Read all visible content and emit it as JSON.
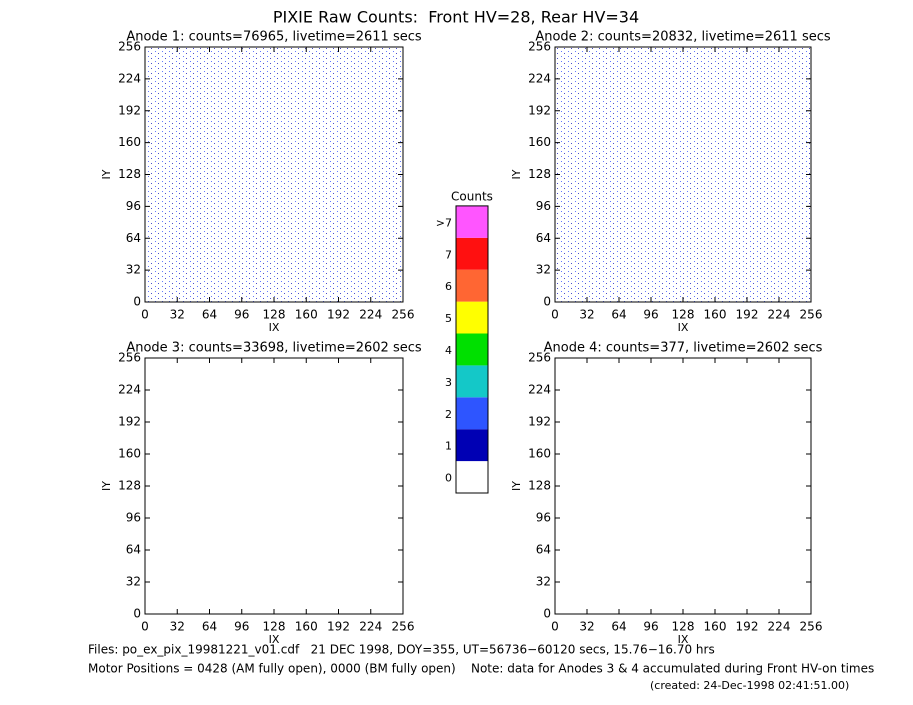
{
  "title": "PIXIE Raw Counts:  Front HV=28, Rear HV=34",
  "chart_data": [
    {
      "type": "heatmap",
      "title": "Anode 1: counts=76965, livetime=2611 secs",
      "xlabel": "IX",
      "ylabel": "IY",
      "xlim": [
        0,
        256
      ],
      "ylim": [
        0,
        256
      ],
      "xticks": [
        0,
        32,
        64,
        96,
        128,
        160,
        192,
        224,
        256
      ],
      "yticks": [
        0,
        32,
        64,
        96,
        128,
        160,
        192,
        224,
        256
      ]
    },
    {
      "type": "heatmap",
      "title": "Anode 2: counts=20832, livetime=2611 secs",
      "xlabel": "IX",
      "ylabel": "IY",
      "xlim": [
        0,
        256
      ],
      "ylim": [
        0,
        256
      ],
      "xticks": [
        0,
        32,
        64,
        96,
        128,
        160,
        192,
        224,
        256
      ],
      "yticks": [
        0,
        32,
        64,
        96,
        128,
        160,
        192,
        224,
        256
      ]
    },
    {
      "type": "heatmap",
      "title": "Anode 3: counts=33698, livetime=2602 secs",
      "xlabel": "IX",
      "ylabel": "IY",
      "xlim": [
        0,
        256
      ],
      "ylim": [
        0,
        256
      ],
      "xticks": [
        0,
        32,
        64,
        96,
        128,
        160,
        192,
        224,
        256
      ],
      "yticks": [
        0,
        32,
        64,
        96,
        128,
        160,
        192,
        224,
        256
      ]
    },
    {
      "type": "heatmap",
      "title": "Anode 4: counts=377, livetime=2602 secs",
      "xlabel": "IX",
      "ylabel": "IY",
      "xlim": [
        0,
        256
      ],
      "ylim": [
        0,
        256
      ],
      "xticks": [
        0,
        32,
        64,
        96,
        128,
        160,
        192,
        224,
        256
      ],
      "yticks": [
        0,
        32,
        64,
        96,
        128,
        160,
        192,
        224,
        256
      ]
    },
    {
      "type": "colorbar",
      "title": "Counts",
      "categories": [
        "0",
        "1",
        "2",
        "3",
        "4",
        "5",
        "6",
        "7",
        ">7"
      ],
      "colors": [
        "#ffffff",
        "#0000b4",
        "#2e55ff",
        "#14c8c8",
        "#00e000",
        "#ffff00",
        "#ff6633",
        "#ff1010",
        "#ff55ff"
      ]
    }
  ],
  "footer": {
    "lines": [
      "Files: po_ex_pix_19981221_v01.cdf   21 DEC 1998, DOY=355, UT=56736−60120 secs, 15.76−16.70 hrs",
      "Motor Positions = 0428 (AM fully open), 0000 (BM fully open)    Note: data for Anodes 3 & 4 accumulated during Front HV-on times"
    ],
    "created": "(created: 24-Dec-1998 02:41:51.00)"
  }
}
